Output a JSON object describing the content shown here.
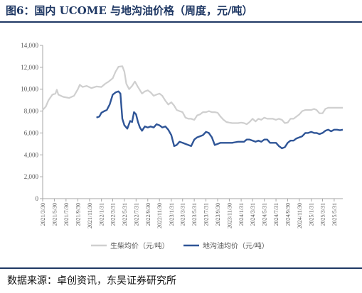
{
  "header": {
    "title": "图6：国内 UCOME 与地沟油价格（周度，元/吨）"
  },
  "footer": {
    "source": "数据来源：卓创资讯，东吴证券研究所"
  },
  "colors": {
    "ucome": "#cfcfcf",
    "waste_oil": "#2f5597",
    "axis": "#a6a6a6",
    "text": "#595959",
    "accent": "#1f3864"
  },
  "chart_data": {
    "type": "line",
    "title": "",
    "xlabel": "",
    "ylabel": "",
    "ylim": [
      0,
      14000
    ],
    "yticks": [
      0,
      2000,
      4000,
      6000,
      8000,
      10000,
      12000,
      14000
    ],
    "ytick_labels": [
      "0",
      "2,000",
      "4,000",
      "6,000",
      "8,000",
      "10,000",
      "12,000",
      "14,000"
    ],
    "xlim": [
      "2021-03-30",
      "2025-07-15"
    ],
    "x_ticks": [
      "2021/3/30",
      "2021/5/30",
      "2021/7/30",
      "2021/9/30",
      "2021/11/30",
      "2022/1/31",
      "2022/3/31",
      "2022/5/31",
      "2022/7/31",
      "2022/9/30",
      "2022/11/30",
      "2023/1/31",
      "2023/3/31",
      "2023/5/31",
      "2023/7/31",
      "2023/9/30",
      "2023/11/30",
      "2024/1/31",
      "2024/3/31",
      "2024/5/31",
      "2024/7/31",
      "2024/9/30",
      "2024/11/30",
      "2025/1/31",
      "2025/3/31",
      "2025/5/31"
    ],
    "grid": false,
    "legend_position": "bottom",
    "series": [
      {
        "name": "生柴均价（元/吨）",
        "color": "#cfcfcf",
        "points": [
          [
            "2021-03-30",
            8100
          ],
          [
            "2021-04-15",
            8400
          ],
          [
            "2021-04-30",
            9000
          ],
          [
            "2021-05-20",
            9500
          ],
          [
            "2021-06-05",
            9600
          ],
          [
            "2021-06-12",
            9950
          ],
          [
            "2021-06-20",
            9500
          ],
          [
            "2021-07-15",
            9300
          ],
          [
            "2021-08-15",
            9200
          ],
          [
            "2021-09-10",
            9400
          ],
          [
            "2021-09-30",
            10000
          ],
          [
            "2021-10-10",
            10400
          ],
          [
            "2021-10-25",
            10200
          ],
          [
            "2021-11-15",
            10300
          ],
          [
            "2021-12-10",
            10100
          ],
          [
            "2022-01-05",
            10250
          ],
          [
            "2022-01-31",
            10200
          ],
          [
            "2022-02-20",
            10500
          ],
          [
            "2022-03-10",
            10700
          ],
          [
            "2022-03-31",
            11000
          ],
          [
            "2022-04-15",
            11600
          ],
          [
            "2022-04-30",
            12050
          ],
          [
            "2022-05-20",
            12100
          ],
          [
            "2022-05-31",
            11600
          ],
          [
            "2022-06-10",
            10500
          ],
          [
            "2022-06-25",
            10000
          ],
          [
            "2022-07-10",
            10300
          ],
          [
            "2022-07-25",
            10700
          ],
          [
            "2022-08-10",
            10200
          ],
          [
            "2022-08-31",
            9600
          ],
          [
            "2022-09-15",
            9800
          ],
          [
            "2022-09-30",
            9900
          ],
          [
            "2022-10-15",
            9700
          ],
          [
            "2022-10-31",
            9400
          ],
          [
            "2022-11-15",
            9500
          ],
          [
            "2022-11-30",
            9600
          ],
          [
            "2022-12-15",
            9400
          ],
          [
            "2022-12-31",
            8950
          ],
          [
            "2023-01-15",
            8600
          ],
          [
            "2023-01-31",
            8800
          ],
          [
            "2023-02-15",
            8500
          ],
          [
            "2023-02-28",
            8100
          ],
          [
            "2023-03-15",
            8000
          ],
          [
            "2023-03-31",
            7900
          ],
          [
            "2023-04-15",
            7400
          ],
          [
            "2023-04-30",
            7300
          ],
          [
            "2023-05-15",
            7300
          ],
          [
            "2023-05-31",
            7200
          ],
          [
            "2023-06-15",
            7600
          ],
          [
            "2023-06-30",
            7700
          ],
          [
            "2023-07-15",
            7900
          ],
          [
            "2023-07-31",
            7900
          ],
          [
            "2023-08-15",
            8000
          ],
          [
            "2023-08-31",
            7900
          ],
          [
            "2023-09-15",
            7900
          ],
          [
            "2023-09-30",
            7850
          ],
          [
            "2023-10-15",
            7500
          ],
          [
            "2023-10-31",
            7200
          ],
          [
            "2023-11-15",
            7000
          ],
          [
            "2023-11-30",
            6950
          ],
          [
            "2023-12-15",
            6900
          ],
          [
            "2023-12-31",
            6900
          ],
          [
            "2024-01-15",
            6900
          ],
          [
            "2024-01-31",
            6950
          ],
          [
            "2024-02-15",
            6900
          ],
          [
            "2024-02-29",
            6800
          ],
          [
            "2024-03-15",
            7000
          ],
          [
            "2024-03-31",
            7300
          ],
          [
            "2024-04-15",
            7050
          ],
          [
            "2024-04-30",
            7300
          ],
          [
            "2024-05-15",
            7200
          ],
          [
            "2024-05-31",
            7400
          ],
          [
            "2024-06-15",
            7300
          ],
          [
            "2024-06-30",
            7300
          ],
          [
            "2024-07-15",
            7300
          ],
          [
            "2024-07-31",
            7200
          ],
          [
            "2024-08-15",
            7300
          ],
          [
            "2024-08-31",
            7200
          ],
          [
            "2024-09-15",
            6900
          ],
          [
            "2024-09-30",
            6950
          ],
          [
            "2024-10-15",
            7300
          ],
          [
            "2024-10-31",
            7300
          ],
          [
            "2024-11-15",
            7500
          ],
          [
            "2024-11-30",
            7700
          ],
          [
            "2024-12-15",
            8000
          ],
          [
            "2024-12-31",
            8100
          ],
          [
            "2025-01-15",
            8100
          ],
          [
            "2025-01-31",
            8100
          ],
          [
            "2025-02-15",
            8200
          ],
          [
            "2025-02-28",
            8100
          ],
          [
            "2025-03-15",
            7800
          ],
          [
            "2025-03-31",
            7800
          ],
          [
            "2025-04-15",
            8200
          ],
          [
            "2025-04-30",
            8300
          ],
          [
            "2025-05-15",
            8300
          ],
          [
            "2025-05-31",
            8300
          ],
          [
            "2025-06-15",
            8300
          ],
          [
            "2025-06-30",
            8300
          ],
          [
            "2025-07-15",
            8300
          ]
        ]
      },
      {
        "name": "地沟油均价（元/吨）",
        "color": "#2f5597",
        "points": [
          [
            "2022-01-05",
            7400
          ],
          [
            "2022-01-20",
            7500
          ],
          [
            "2022-01-31",
            7850
          ],
          [
            "2022-02-15",
            8000
          ],
          [
            "2022-02-28",
            8100
          ],
          [
            "2022-03-15",
            8600
          ],
          [
            "2022-03-31",
            9500
          ],
          [
            "2022-04-15",
            9700
          ],
          [
            "2022-04-30",
            9800
          ],
          [
            "2022-05-10",
            9600
          ],
          [
            "2022-05-20",
            7300
          ],
          [
            "2022-05-31",
            6700
          ],
          [
            "2022-06-15",
            6400
          ],
          [
            "2022-06-30",
            7100
          ],
          [
            "2022-07-10",
            7000
          ],
          [
            "2022-07-20",
            7900
          ],
          [
            "2022-07-31",
            7700
          ],
          [
            "2022-08-10",
            7000
          ],
          [
            "2022-08-20",
            6500
          ],
          [
            "2022-08-31",
            6200
          ],
          [
            "2022-09-15",
            6600
          ],
          [
            "2022-09-30",
            6500
          ],
          [
            "2022-10-15",
            6600
          ],
          [
            "2022-10-31",
            6500
          ],
          [
            "2022-11-15",
            6800
          ],
          [
            "2022-11-30",
            6700
          ],
          [
            "2022-12-15",
            6500
          ],
          [
            "2022-12-31",
            6600
          ],
          [
            "2023-01-15",
            6300
          ],
          [
            "2023-01-31",
            5800
          ],
          [
            "2023-02-15",
            4800
          ],
          [
            "2023-02-28",
            4900
          ],
          [
            "2023-03-15",
            5200
          ],
          [
            "2023-03-31",
            5100
          ],
          [
            "2023-04-15",
            5000
          ],
          [
            "2023-04-30",
            4900
          ],
          [
            "2023-05-15",
            4800
          ],
          [
            "2023-05-31",
            5400
          ],
          [
            "2023-06-15",
            5600
          ],
          [
            "2023-06-30",
            5700
          ],
          [
            "2023-07-15",
            5800
          ],
          [
            "2023-07-31",
            6100
          ],
          [
            "2023-08-15",
            6000
          ],
          [
            "2023-08-31",
            5600
          ],
          [
            "2023-09-15",
            4900
          ],
          [
            "2023-09-30",
            5000
          ],
          [
            "2023-10-15",
            5100
          ],
          [
            "2023-10-31",
            5100
          ],
          [
            "2023-11-15",
            5100
          ],
          [
            "2023-11-30",
            5100
          ],
          [
            "2023-12-15",
            5100
          ],
          [
            "2023-12-31",
            5150
          ],
          [
            "2024-01-15",
            5200
          ],
          [
            "2024-01-31",
            5200
          ],
          [
            "2024-02-15",
            5200
          ],
          [
            "2024-02-29",
            5400
          ],
          [
            "2024-03-15",
            5400
          ],
          [
            "2024-03-31",
            5300
          ],
          [
            "2024-04-15",
            5200
          ],
          [
            "2024-04-30",
            5300
          ],
          [
            "2024-05-15",
            5200
          ],
          [
            "2024-05-31",
            5400
          ],
          [
            "2024-06-15",
            5400
          ],
          [
            "2024-06-30",
            5100
          ],
          [
            "2024-07-15",
            5100
          ],
          [
            "2024-07-31",
            5100
          ],
          [
            "2024-08-15",
            4800
          ],
          [
            "2024-08-31",
            4600
          ],
          [
            "2024-09-15",
            4700
          ],
          [
            "2024-09-30",
            5100
          ],
          [
            "2024-10-15",
            5300
          ],
          [
            "2024-10-31",
            5300
          ],
          [
            "2024-11-15",
            5500
          ],
          [
            "2024-11-30",
            5600
          ],
          [
            "2024-12-15",
            5700
          ],
          [
            "2024-12-31",
            6000
          ],
          [
            "2025-01-15",
            6000
          ],
          [
            "2025-01-31",
            6100
          ],
          [
            "2025-02-15",
            6000
          ],
          [
            "2025-02-28",
            6000
          ],
          [
            "2025-03-15",
            5900
          ],
          [
            "2025-03-31",
            6000
          ],
          [
            "2025-04-15",
            6200
          ],
          [
            "2025-04-30",
            6300
          ],
          [
            "2025-05-15",
            6150
          ],
          [
            "2025-05-31",
            6300
          ],
          [
            "2025-06-15",
            6300
          ],
          [
            "2025-06-30",
            6250
          ],
          [
            "2025-07-15",
            6300
          ]
        ]
      }
    ]
  }
}
